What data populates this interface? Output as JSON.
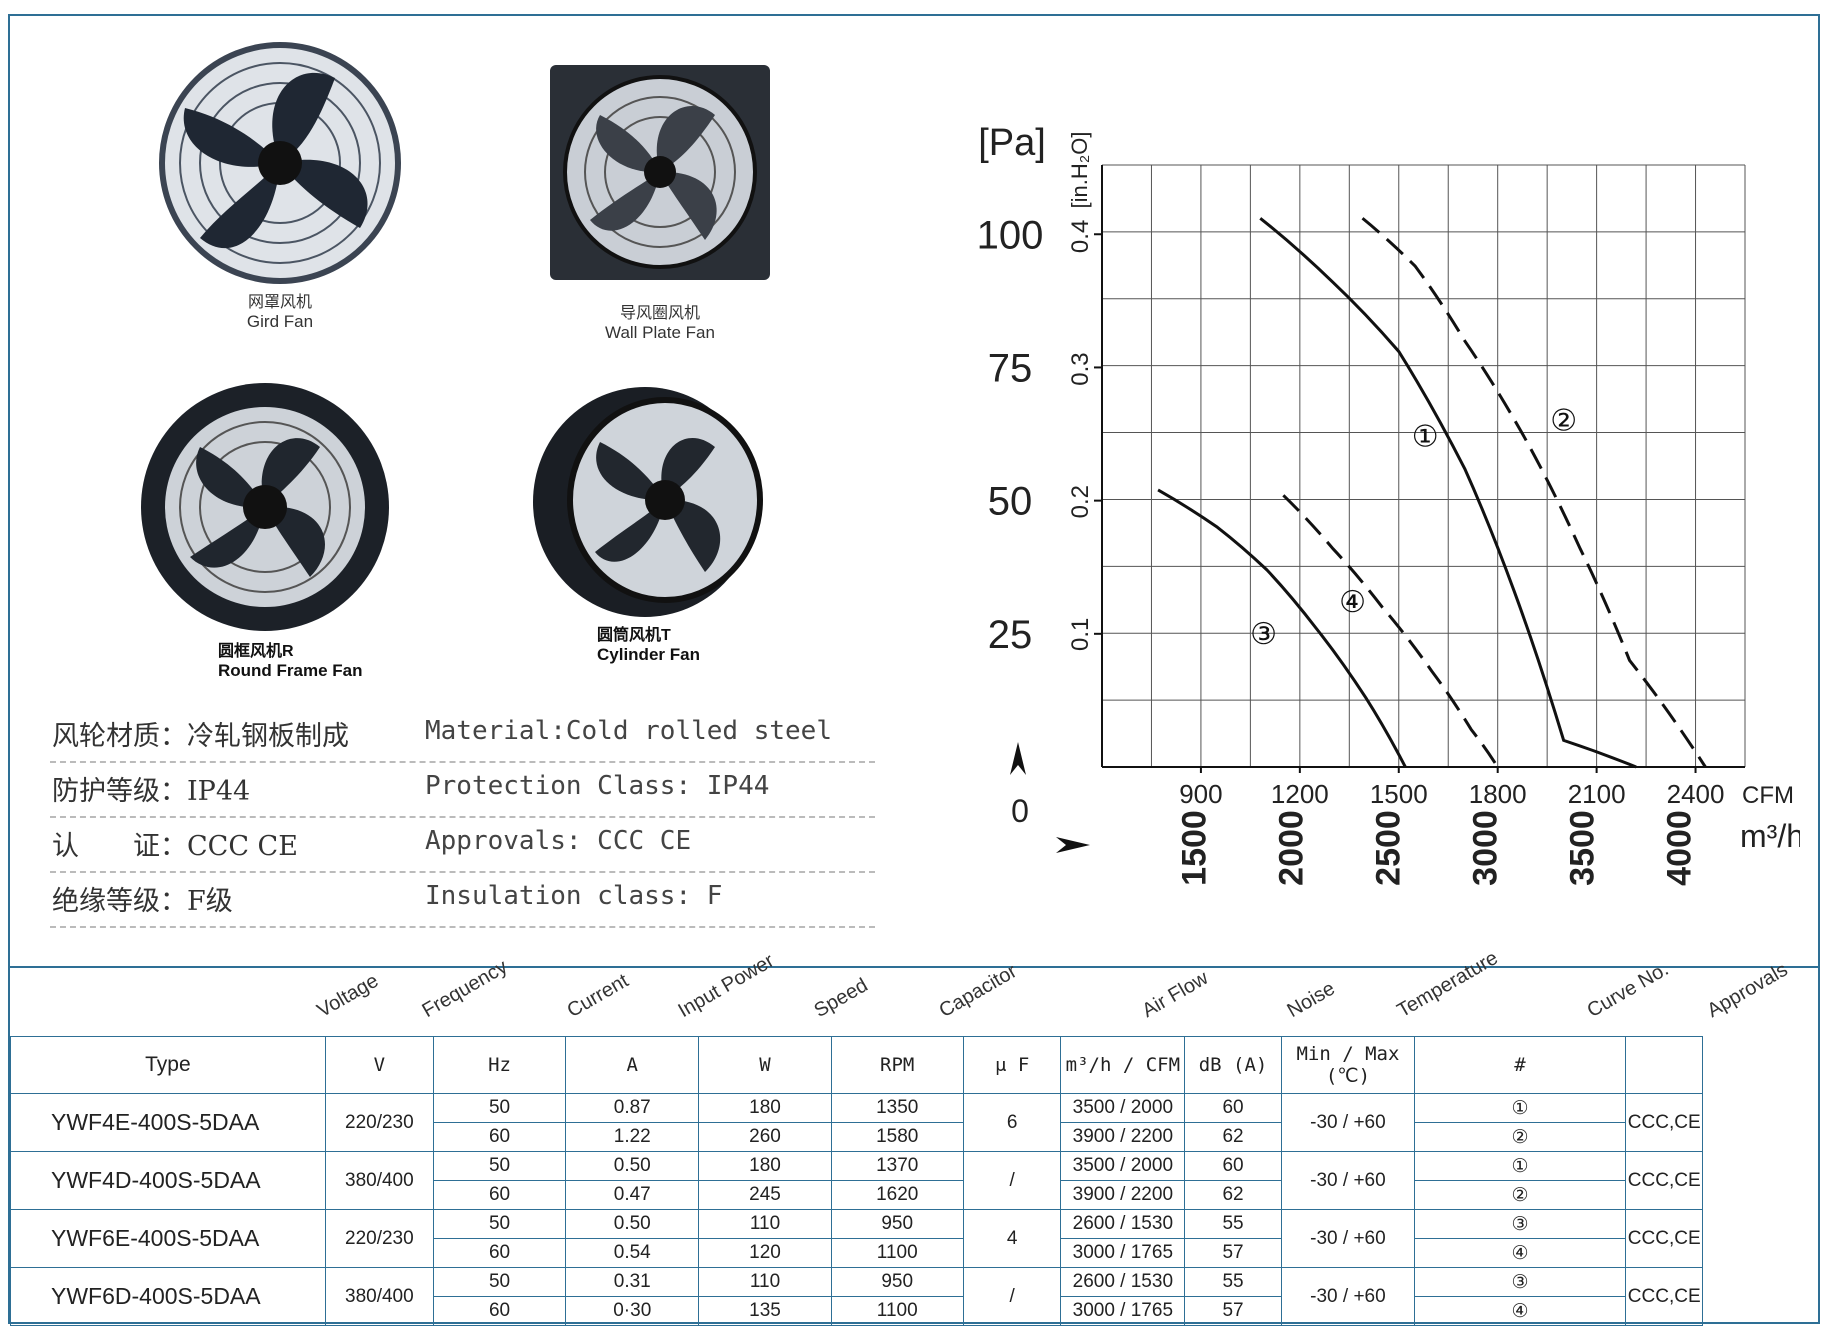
{
  "fans": [
    {
      "cn": "网罩风机",
      "en": "Gird Fan"
    },
    {
      "cn": "导风圈风机",
      "en": "Wall Plate Fan"
    },
    {
      "cn": "圆框风机R",
      "en": "Round Frame Fan"
    },
    {
      "cn": "圆筒风机T",
      "en": "Cylinder Fan"
    }
  ],
  "specs": [
    {
      "cn": "风轮材质：冷轧钢板制成",
      "en": "Material:Cold rolled steel"
    },
    {
      "cn": "防护等级：IP44",
      "en": "Protection Class: IP44"
    },
    {
      "cn": "认　　证：CCC CE",
      "en": "Approvals: CCC  CE"
    },
    {
      "cn": "绝缘等级：F级",
      "en": "Insulation class: F"
    }
  ],
  "chart_data": {
    "type": "line",
    "y_unit_pa": "[Pa]",
    "y_unit_inh2o": "[in.H₂O]",
    "y_ticks_pa": [
      "100",
      "75",
      "50",
      "25"
    ],
    "y_ticks_inh2o": [
      "0.4",
      "0.3",
      "0.2",
      "0.1"
    ],
    "origin_label": "0",
    "x_ticks_cfm": [
      "900",
      "1200",
      "1500",
      "1800",
      "2100",
      "2400"
    ],
    "x_unit_cfm": "CFM",
    "x_ticks_m3h": [
      "1500",
      "2000",
      "2500",
      "3000",
      "3500",
      "4000"
    ],
    "x_unit_m3h": "m³/h",
    "xlim_cfm": [
      600,
      2550
    ],
    "ylim_pa": [
      0,
      113
    ],
    "series": [
      {
        "name": "①",
        "style": "solid",
        "points": [
          [
            1080,
            103
          ],
          [
            1300,
            91
          ],
          [
            1500,
            78
          ],
          [
            1700,
            56
          ],
          [
            1850,
            33
          ],
          [
            2000,
            5
          ],
          [
            2220,
            0
          ]
        ]
      },
      {
        "name": "②",
        "style": "dashed",
        "points": [
          [
            1390,
            103
          ],
          [
            1550,
            94
          ],
          [
            1700,
            80
          ],
          [
            1880,
            62
          ],
          [
            2050,
            41
          ],
          [
            2200,
            20
          ],
          [
            2430,
            0
          ]
        ]
      },
      {
        "name": "③",
        "style": "solid",
        "points": [
          [
            770,
            52
          ],
          [
            950,
            45
          ],
          [
            1100,
            37
          ],
          [
            1250,
            26
          ],
          [
            1400,
            13
          ],
          [
            1520,
            0
          ]
        ]
      },
      {
        "name": "④",
        "style": "dashed",
        "points": [
          [
            1150,
            51
          ],
          [
            1300,
            41
          ],
          [
            1450,
            30
          ],
          [
            1600,
            18
          ],
          [
            1720,
            7
          ],
          [
            1800,
            0
          ]
        ]
      }
    ]
  },
  "table": {
    "headers_rot": [
      "Voltage",
      "Frequency",
      "Current",
      "Input Power",
      "Speed",
      "Capacitor",
      "Air Flow",
      "Noise",
      "Temperature",
      "Curve No.",
      "Approvals"
    ],
    "header_type": "Type",
    "units": [
      "V",
      "Hz",
      "A",
      "W",
      "RPM",
      "μ F",
      "m³/h  /  CFM",
      "dB (A)",
      "Min / Max (℃)",
      "#"
    ],
    "rows": [
      {
        "type": "YWF4E-400S-5DAA",
        "volt": "220/230",
        "cap": "6",
        "temp": "-30 / +60",
        "appr": "CCC,CE",
        "sub": [
          {
            "hz": "50",
            "a": "0.87",
            "w": "180",
            "rpm": "1350",
            "m3h": "3500",
            "cfm": "2000",
            "db": "60",
            "curve": "①"
          },
          {
            "hz": "60",
            "a": "1.22",
            "w": "260",
            "rpm": "1580",
            "m3h": "3900",
            "cfm": "2200",
            "db": "62",
            "curve": "②"
          }
        ]
      },
      {
        "type": "YWF4D-400S-5DAA",
        "volt": "380/400",
        "cap": "/",
        "temp": "-30 / +60",
        "appr": "CCC,CE",
        "sub": [
          {
            "hz": "50",
            "a": "0.50",
            "w": "180",
            "rpm": "1370",
            "m3h": "3500",
            "cfm": "2000",
            "db": "60",
            "curve": "①"
          },
          {
            "hz": "60",
            "a": "0.47",
            "w": "245",
            "rpm": "1620",
            "m3h": "3900",
            "cfm": "2200",
            "db": "62",
            "curve": "②"
          }
        ]
      },
      {
        "type": "YWF6E-400S-5DAA",
        "volt": "220/230",
        "cap": "4",
        "temp": "-30 / +60",
        "appr": "CCC,CE",
        "sub": [
          {
            "hz": "50",
            "a": "0.50",
            "w": "110",
            "rpm": "950",
            "m3h": "2600",
            "cfm": "1530",
            "db": "55",
            "curve": "③"
          },
          {
            "hz": "60",
            "a": "0.54",
            "w": "120",
            "rpm": "1100",
            "m3h": "3000",
            "cfm": "1765",
            "db": "57",
            "curve": "④"
          }
        ]
      },
      {
        "type": "YWF6D-400S-5DAA",
        "volt": "380/400",
        "cap": "/",
        "temp": "-30 / +60",
        "appr": "CCC,CE",
        "sub": [
          {
            "hz": "50",
            "a": "0.31",
            "w": "110",
            "rpm": "950",
            "m3h": "2600",
            "cfm": "1530",
            "db": "55",
            "curve": "③"
          },
          {
            "hz": "60",
            "a": "0·30",
            "w": "135",
            "rpm": "1100",
            "m3h": "3000",
            "cfm": "1765",
            "db": "57",
            "curve": "④"
          }
        ]
      }
    ]
  }
}
